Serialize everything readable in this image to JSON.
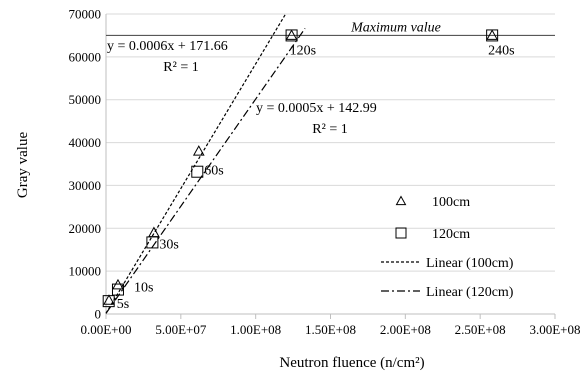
{
  "chart_data": {
    "type": "scatter",
    "xlabel": "Neutron fluence (n/cm²)",
    "ylabel": "Gray value",
    "xlim": [
      0,
      300000000
    ],
    "ylim": [
      0,
      70000
    ],
    "x_ticks": [
      0,
      50000000,
      100000000,
      150000000,
      200000000,
      250000000,
      300000000
    ],
    "x_tick_labels": [
      "0.00E+00",
      "5.00E+07",
      "1.00E+08",
      "1.50E+08",
      "2.00E+08",
      "2.50E+08",
      "3.00E+08"
    ],
    "y_ticks": [
      0,
      10000,
      20000,
      30000,
      40000,
      50000,
      60000,
      70000
    ],
    "y_tick_labels": [
      "0",
      "10000",
      "20000",
      "30000",
      "40000",
      "50000",
      "60000",
      "70000"
    ],
    "grid": "horizontal",
    "legend_position": "bottom-right",
    "series": [
      {
        "name": "100cm",
        "marker": "triangle",
        "points": [
          [
            2000000,
            3200
          ],
          [
            8000000,
            6800
          ],
          [
            32000000,
            19000
          ],
          [
            62000000,
            38000
          ],
          [
            124000000,
            65000
          ],
          [
            258000000,
            65000
          ]
        ]
      },
      {
        "name": "120cm",
        "marker": "square",
        "points": [
          [
            1800000,
            3000
          ],
          [
            8000000,
            5700
          ],
          [
            31000000,
            16700
          ],
          [
            61000000,
            33200
          ],
          [
            124000000,
            65000
          ],
          [
            258000000,
            65000
          ]
        ]
      }
    ],
    "trendlines": [
      {
        "name": "Linear (100cm)",
        "style": "dashed",
        "slope": 0.0006,
        "intercept": 171.66,
        "x_range": [
          0,
          120000000
        ],
        "equation": "y = 0.0006x + 171.66",
        "r2": "R² = 1"
      },
      {
        "name": "Linear (120cm)",
        "style": "dash-dot",
        "slope": 0.0005,
        "intercept": 142.99,
        "x_range": [
          0,
          133000000
        ],
        "equation": "y = 0.0005x + 142.99",
        "r2": "R² = 1"
      }
    ],
    "reference_line": {
      "y": 65000,
      "label": "Maximum value"
    },
    "point_labels": [
      {
        "text": "5s",
        "x": 1800000,
        "y": 3000
      },
      {
        "text": "10s",
        "x": 8000000,
        "y": 5700
      },
      {
        "text": "30s",
        "x": 31000000,
        "y": 16700
      },
      {
        "text": "60s",
        "x": 61000000,
        "y": 33200
      },
      {
        "text": "120s",
        "x": 124000000,
        "y": 65000
      },
      {
        "text": "240s",
        "x": 258000000,
        "y": 65000
      }
    ]
  }
}
